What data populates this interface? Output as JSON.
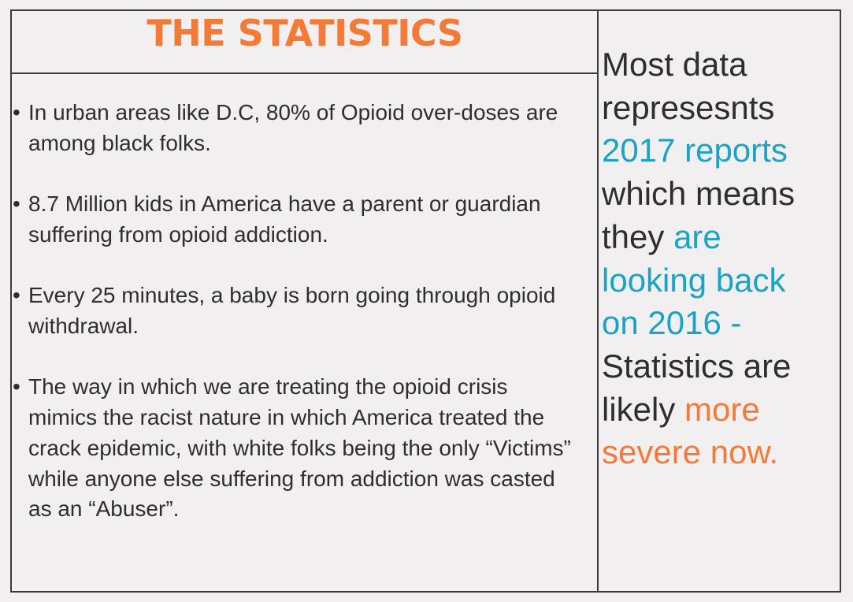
{
  "title": "THE STATISTICS",
  "bullets": [
    {
      "marker": "•",
      "text": "In urban areas like D.C, 80% of Opioid over-doses are among black folks."
    },
    {
      "marker": "•",
      "text": "8.7 Million kids in America have a parent or guardian suffering from opioid addiction."
    },
    {
      "marker": "•",
      "text": "Every 25 minutes, a baby is born going through opioid withdrawal."
    },
    {
      "marker": "•",
      "text": "The way in which we are treating the opioid crisis mimics the racist nature in which America treated the crack epidemic, with white folks being the only “Victims” while anyone else suffering from addiction was casted as an “Abuser”."
    }
  ],
  "sidebar_note": {
    "part1": "Most data represesnts ",
    "part2": "2017 reports",
    "part3": " which means they ",
    "part4": "are looking back on 2016 -",
    "part5": " Statistics are likely ",
    "part6": "more severe now."
  },
  "colors": {
    "title_orange": "#f47a38",
    "highlight_teal": "#1aa3c4",
    "text": "#2e2e2e",
    "background": "#f1efef",
    "border": "#3a3a3a"
  }
}
